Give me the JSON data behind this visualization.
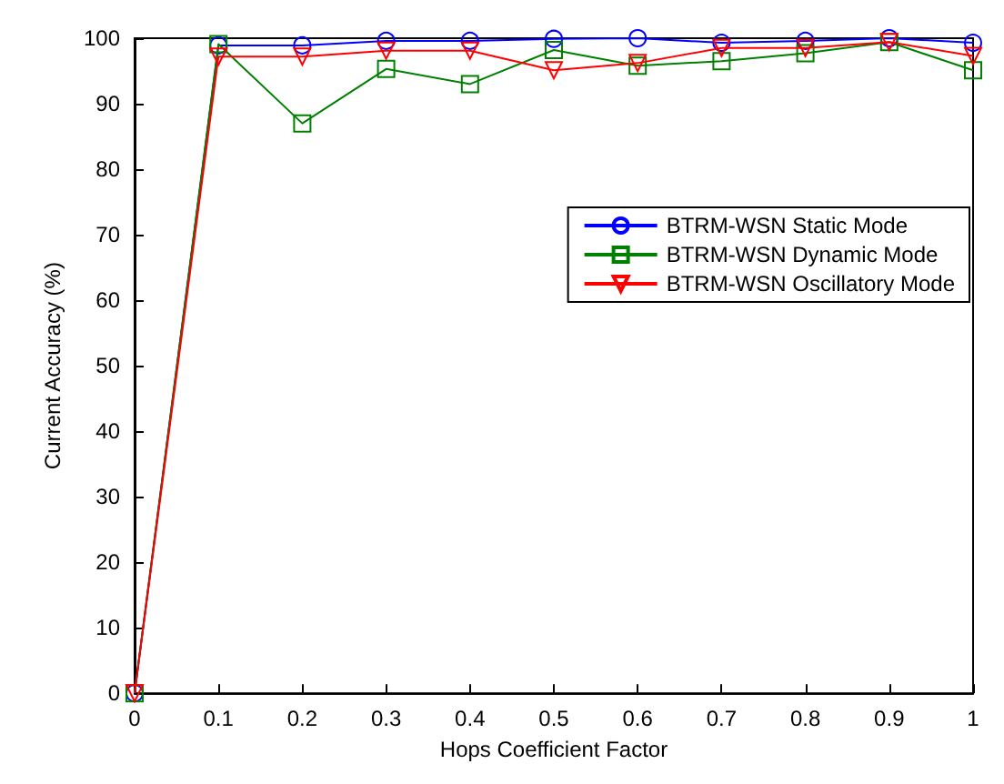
{
  "chart_data": {
    "type": "line",
    "xlabel": "Hops Coefficient Factor",
    "ylabel": "Current Accuracy (%)",
    "x": [
      0,
      0.1,
      0.2,
      0.3,
      0.4,
      0.5,
      0.6,
      0.7,
      0.8,
      0.9,
      1
    ],
    "series": [
      {
        "name": "BTRM-WSN Static Mode",
        "color": "#0000ff",
        "marker": "circle",
        "values": [
          0,
          98.9,
          98.9,
          99.6,
          99.6,
          99.9,
          100,
          99.3,
          99.6,
          100,
          99.3
        ]
      },
      {
        "name": "BTRM-WSN Dynamic Mode",
        "color": "#008000",
        "marker": "square",
        "values": [
          0,
          99.1,
          87,
          95.3,
          93,
          98.2,
          95.8,
          96.5,
          97.7,
          99.4,
          95.1
        ]
      },
      {
        "name": "BTRM-WSN Oscillatory Mode",
        "color": "#ff0000",
        "marker": "triangle-down",
        "values": [
          0,
          97.2,
          97.2,
          98.1,
          98.1,
          95.1,
          96.2,
          98.5,
          98.5,
          99.4,
          97.3
        ]
      }
    ],
    "xlim": [
      0,
      1
    ],
    "xticks": [
      0,
      0.1,
      0.2,
      0.3,
      0.4,
      0.5,
      0.6,
      0.7,
      0.8,
      0.9,
      1
    ],
    "ylim": [
      0,
      100
    ],
    "yticks": [
      0,
      10,
      20,
      30,
      40,
      50,
      60,
      70,
      80,
      90,
      100
    ],
    "grid": false,
    "legend": "right",
    "line_style": "solid"
  }
}
